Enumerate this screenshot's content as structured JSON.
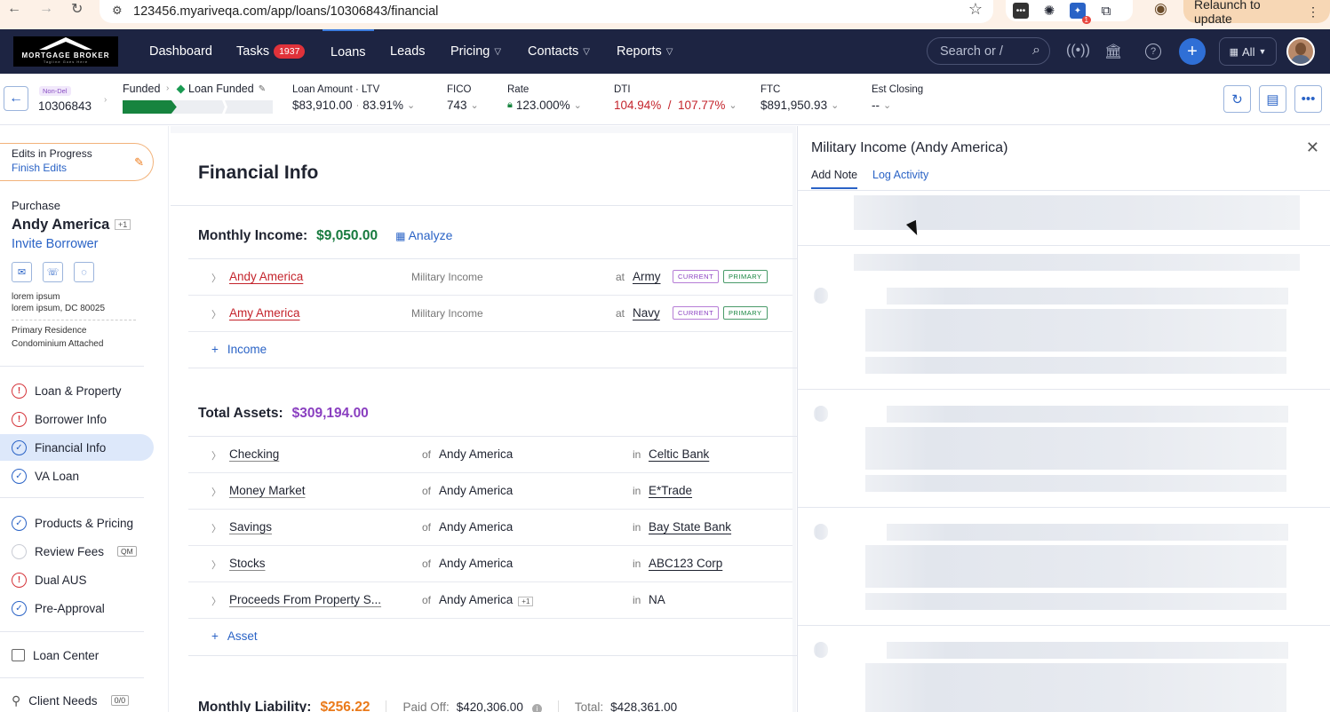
{
  "browser": {
    "url": "123456.myariveqa.com/app/loans/10306843/financial",
    "relaunch_label": "Relaunch to update",
    "ext_badge": "1"
  },
  "topnav": {
    "logo_text": "MORTGAGE BROKER",
    "logo_tagline": "Tagline Goes Here",
    "items": [
      {
        "label": "Dashboard"
      },
      {
        "label": "Tasks",
        "badge": "1937"
      },
      {
        "label": "Loans"
      },
      {
        "label": "Leads"
      },
      {
        "label": "Pricing"
      },
      {
        "label": "Contacts"
      },
      {
        "label": "Reports"
      }
    ],
    "search_placeholder": "Search or /",
    "all_label": "All"
  },
  "loan": {
    "tag": "Non-Del",
    "number": "10306843",
    "stage": "Funded",
    "substage": "Loan Funded",
    "progress_fraction": 0.36,
    "metrics": {
      "amount_label": "Loan Amount · LTV",
      "amount": "$83,910.00",
      "ltv": "83.91%",
      "fico_label": "FICO",
      "fico": "743",
      "rate_label": "Rate",
      "rate": "123.000%",
      "dti_label": "DTI",
      "dti": "104.94%  /  107.77%",
      "ftc_label": "FTC",
      "ftc": "$891,950.93",
      "closing_label": "Est Closing",
      "closing": "--"
    }
  },
  "sidebar": {
    "edits_title": "Edits in Progress",
    "edits_link": "Finish Edits",
    "purpose": "Purchase",
    "borrower": "Andy America",
    "borrower_extra": "+1",
    "invite": "Invite Borrower",
    "address_line1": "lorem ipsum",
    "address_line2": "lorem ipsum, DC 80025",
    "occupancy": "Primary Residence",
    "property_type": "Condominium Attached",
    "nav": [
      {
        "label": "Loan & Property",
        "status": "warn"
      },
      {
        "label": "Borrower Info",
        "status": "warn"
      },
      {
        "label": "Financial Info",
        "status": "ok"
      },
      {
        "label": "VA Loan",
        "status": "ok"
      },
      {
        "label": "Products & Pricing",
        "status": "ok"
      },
      {
        "label": "Review Fees",
        "status": "none",
        "tag": "QM"
      },
      {
        "label": "Dual AUS",
        "status": "warn"
      },
      {
        "label": "Pre-Approval",
        "status": "ok"
      },
      {
        "label": "Loan Center",
        "status": "box"
      },
      {
        "label": "Client Needs",
        "status": "needs",
        "tag": "0/0"
      }
    ]
  },
  "main": {
    "title": "Financial Info",
    "income": {
      "label": "Monthly Income:",
      "amount": "$9,050.00",
      "analyze": "Analyze",
      "rows": [
        {
          "name": "Andy America",
          "type": "Military Income",
          "at": "at",
          "employer": "Army",
          "tag1": "CURRENT",
          "tag2": "PRIMARY"
        },
        {
          "name": "Amy America",
          "type": "Military Income",
          "at": "at",
          "employer": "Navy",
          "tag1": "CURRENT",
          "tag2": "PRIMARY"
        }
      ],
      "add": "Income"
    },
    "assets": {
      "label": "Total Assets:",
      "amount": "$309,194.00",
      "rows": [
        {
          "name": "Checking",
          "of": "of",
          "owner": "Andy America",
          "in": "in",
          "inst": "Celtic Bank"
        },
        {
          "name": "Money Market",
          "of": "of",
          "owner": "Andy America",
          "in": "in",
          "inst": "E*Trade"
        },
        {
          "name": "Savings",
          "of": "of",
          "owner": "Andy America",
          "in": "in",
          "inst": "Bay State Bank"
        },
        {
          "name": "Stocks",
          "of": "of",
          "owner": "Andy America",
          "in": "in",
          "inst": "ABC123 Corp"
        },
        {
          "name": "Proceeds From Property S...",
          "of": "of",
          "owner": "Andy America",
          "owner_extra": "+1",
          "in": "in",
          "inst": "NA"
        }
      ],
      "add": "Asset"
    },
    "liability": {
      "label": "Monthly Liability:",
      "amount": "$256.22",
      "paid_off_label": "Paid Off:",
      "paid_off": "$420,306.00",
      "total_label": "Total:",
      "total": "$428,361.00"
    }
  },
  "panel": {
    "title": "Military Income (Andy America)",
    "tab_note": "Add Note",
    "tab_activity": "Log Activity"
  },
  "colors": {
    "nav_bg": "#1d2442",
    "accent": "#2a63c6",
    "income_green": "#177a3e",
    "assets_purple": "#8a3fc0",
    "liability_orange": "#ea7a1a",
    "error_red": "#c4242c"
  }
}
